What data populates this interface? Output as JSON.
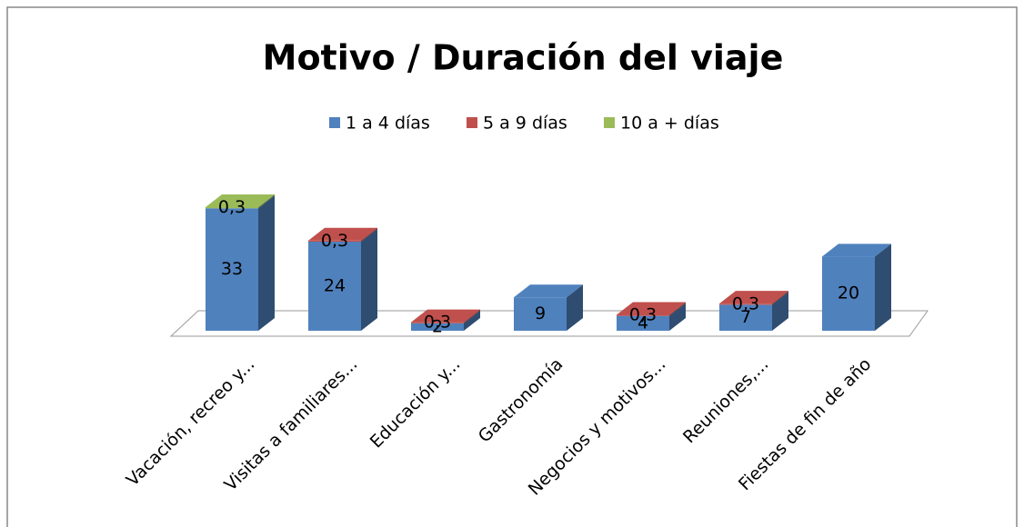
{
  "chart_data": {
    "type": "bar3d_stacked",
    "title": "Motivo / Duración del viaje",
    "categories": [
      "Vacación, recreo y...",
      "Visitas a familiares...",
      "Educación y...",
      "Gastronomía",
      "Negocios y motivos...",
      "Reuniones,...",
      "Fiestas de fin de año"
    ],
    "series": [
      {
        "name": "1 a 4 días",
        "color": "#4f81bd",
        "values": [
          33,
          24,
          2,
          9,
          4,
          7,
          20
        ]
      },
      {
        "name": "5 a 9 días",
        "color": "#c0504d",
        "values": [
          null,
          0.3,
          0.3,
          null,
          0.3,
          0.3,
          null
        ],
        "value_labels": [
          null,
          "0,3",
          "0,3",
          null,
          "0,3",
          "0,3",
          null
        ]
      },
      {
        "name": "10 a + días",
        "color": "#9bbb59",
        "values": [
          0.3,
          null,
          null,
          null,
          null,
          null,
          null
        ],
        "value_labels": [
          "0,3",
          null,
          null,
          null,
          null,
          null,
          null
        ]
      }
    ],
    "legend": "top"
  }
}
